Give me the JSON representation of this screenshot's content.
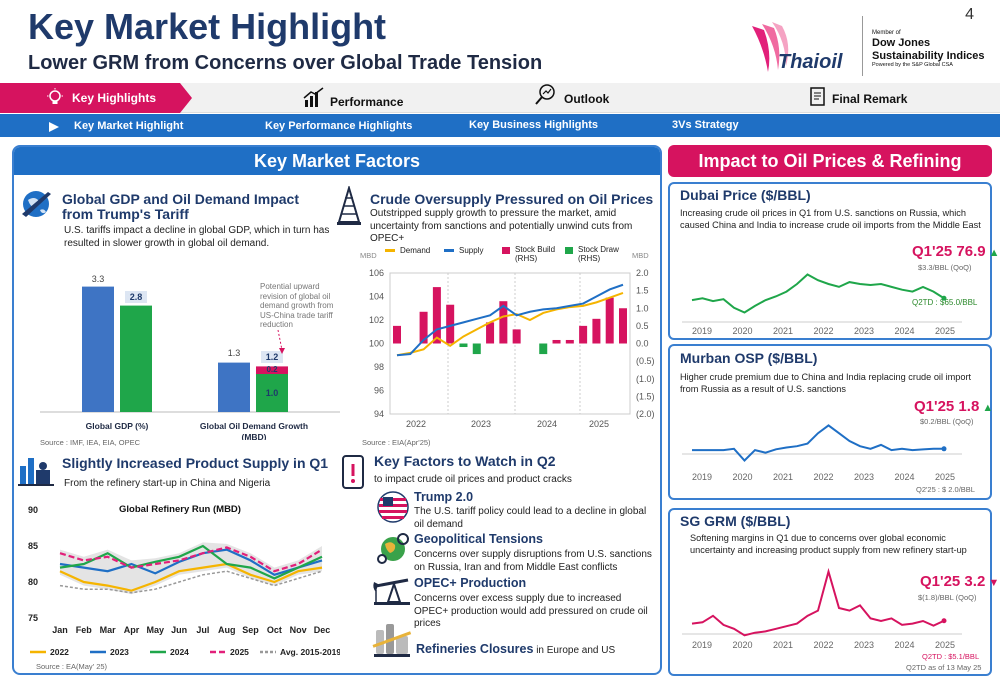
{
  "header": {
    "title": "Key Market Highlight",
    "subtitle": "Lower GRM from Concerns over Global Trade Tension",
    "page_number": "4",
    "brand": "Thaioil",
    "dj_member": "Member of",
    "dj_name1": "Dow Jones",
    "dj_name2": "Sustainability Indices",
    "dj_powered": "Powered by the S&P Global CSA"
  },
  "nav": {
    "tabs": [
      "Key Highlights",
      "Performance",
      "Outlook",
      "Final Remark"
    ],
    "subtabs": [
      "Key Market Highlight",
      "Key Performance Highlights",
      "Key Business Highlights",
      "3Vs Strategy"
    ]
  },
  "left_panel": {
    "header": "Key Market Factors",
    "gdp": {
      "title": "Global GDP and Oil Demand Impact from Trump's Tariff",
      "text": "U.S. tariffs impact a decline in global GDP, which in turn has resulted in slower growth in global oil demand.",
      "annotation": "Potential upward revision of global oil demand growth from US-China trade tariff reduction",
      "source": "Source : IMF, IEA, EIA, OPEC"
    },
    "oversupply": {
      "title": "Crude Oversupply Pressured on Oil Prices",
      "text": "Outstripped supply growth to pressure the market, amid uncertainty from sanctions and potentially unwind cuts from OPEC+",
      "source": "Source : EIA(Apr'25)"
    },
    "product": {
      "title": "Slightly Increased Product Supply in Q1",
      "text": "From the refinery start-up in China and Nigeria",
      "source": "Source : EA(May' 25)"
    },
    "watch": {
      "title": "Key Factors to Watch in Q2",
      "subtitle": "to impact crude oil prices and product cracks",
      "items": [
        {
          "title": "Trump 2.0",
          "text": "The U.S. tariff policy could lead to a decline in global oil demand"
        },
        {
          "title": "Geopolitical Tensions",
          "text": "Concerns over supply disruptions from U.S. sanctions on Russia, Iran and from Middle East conflicts"
        },
        {
          "title": "OPEC+ Production",
          "text": "Concerns over excess supply due to increased OPEC+ production would add pressured on crude oil prices"
        },
        {
          "title": "Refineries Closures",
          "text": " in Europe and US"
        }
      ]
    }
  },
  "right_panel": {
    "header": "Impact to Oil Prices & Refining Margin",
    "dubai": {
      "title": "Dubai Price ($/BBL)",
      "text": "Increasing crude oil prices in Q1 from U.S. sanctions on Russia, which caused China and India to increase crude oil imports from the Middle East",
      "price": "Q1'25 76.9",
      "change": "$3.3/BBL (QoQ)",
      "q2td": "Q2TD : $65.0/BBL",
      "years": [
        "2019",
        "2020",
        "2021",
        "2022",
        "2023",
        "2024",
        "2025"
      ]
    },
    "murban": {
      "title": "Murban OSP ($/BBL)",
      "text": "Higher crude premium due to China and India replacing crude oil import from Russia as a result of U.S. sanctions",
      "price": "Q1'25 1.8",
      "change": "$0.2/BBL (QoQ)",
      "q2td": "Q2'25 : $ 2.0/BBL",
      "years": [
        "2019",
        "2020",
        "2021",
        "2022",
        "2023",
        "2024",
        "2025"
      ]
    },
    "grm": {
      "title": "SG GRM ($/BBL)",
      "text": "Softening margins in Q1 due to concerns over global economic uncertainty and increasing product supply from new refinery start-up",
      "price": "Q1'25 3.2",
      "change": "$(1.8)/BBL (QoQ)",
      "q2td": "Q2TD : $5.1/BBL",
      "asof": "Q2TD as of 13 May 25",
      "years": [
        "2019",
        "2020",
        "2021",
        "2022",
        "2023",
        "2024",
        "2025"
      ]
    }
  },
  "colors": {
    "navy": "#1f3a6b",
    "blue": "#1f6fc5",
    "pink": "#d6135f",
    "green": "#1fa64a",
    "orange": "#f5b400"
  },
  "chart_data": [
    {
      "type": "bar",
      "categories": [
        "Global GDP (%)",
        "Global Oil Demand Growth (MBD)"
      ],
      "series": [
        {
          "values": [
            3.3,
            1.3
          ]
        },
        {
          "values": [
            2.8,
            1.0
          ]
        }
      ],
      "annotations": [
        "3.3",
        "2.8",
        "1.3",
        "1.2",
        "0.2",
        "1.0"
      ],
      "stacked_addition": 0.2
    },
    {
      "type": "line",
      "ylabel_left": "MBD",
      "ylabel_right": "MBD",
      "legend": [
        "Demand",
        "Supply",
        "Stock Build (RHS)",
        "Stock Draw (RHS)"
      ],
      "y_left_ticks": [
        "106",
        "104",
        "102",
        "100",
        "98",
        "96",
        "94"
      ],
      "y_right_ticks": [
        "2.0",
        "1.5",
        "1.0",
        "0.5",
        "0.0",
        "(0.5)",
        "(1.0)",
        "(1.5)",
        "(2.0)"
      ],
      "x_ticks": [
        "2022",
        "2023",
        "2024",
        "2025"
      ],
      "demand": [
        99.0,
        99.2,
        99.5,
        100.5,
        99.8,
        100.6,
        101.2,
        101.8,
        102.3,
        102.5,
        102.0,
        102.6,
        102.9,
        103.1,
        103.2,
        103.5,
        103.9,
        104.3
      ],
      "supply": [
        99.0,
        99.1,
        100.3,
        101.2,
        101.5,
        101.8,
        102.1,
        102.4,
        103.2,
        102.4,
        102.7,
        102.9,
        103.0,
        103.2,
        103.4,
        104.0,
        104.6,
        105.0
      ],
      "stock": [
        0.5,
        0,
        0.9,
        1.6,
        1.1,
        -0.1,
        -0.3,
        0.6,
        1.2,
        0.4,
        0,
        -0.3,
        0.1,
        0.1,
        0.5,
        0.7,
        1.3,
        1.0
      ]
    },
    {
      "type": "line",
      "title": "Global Refinery Run (MBD)",
      "x": [
        "Jan",
        "Feb",
        "Mar",
        "Apr",
        "May",
        "Jun",
        "Jul",
        "Aug",
        "Sep",
        "Oct",
        "Nov",
        "Dec"
      ],
      "y_ticks": [
        "90",
        "85",
        "80",
        "75"
      ],
      "series": [
        {
          "name": "2022",
          "values": [
            81.5,
            80.0,
            79.5,
            78.8,
            80.0,
            81.5,
            82.0,
            82.5,
            81.0,
            80.0,
            81.5,
            82.0
          ]
        },
        {
          "name": "2023",
          "values": [
            82.5,
            82.0,
            81.5,
            82.5,
            81.2,
            82.8,
            84.0,
            84.5,
            83.0,
            81.0,
            82.0,
            83.0
          ]
        },
        {
          "name": "2024",
          "values": [
            82.0,
            82.5,
            84.0,
            82.0,
            82.8,
            83.5,
            85.0,
            82.5,
            82.0,
            80.5,
            82.0,
            83.5
          ]
        },
        {
          "name": "2025",
          "values": [
            84.0,
            83.0,
            83.5,
            82.0,
            82.5,
            83.0,
            84.0,
            84.8,
            83.5,
            81.5,
            82.5,
            84.5
          ]
        },
        {
          "name": "Avg. 2015-2019",
          "values": [
            79.5,
            79.0,
            79.0,
            78.5,
            79.0,
            80.0,
            81.0,
            81.5,
            80.5,
            79.5,
            80.5,
            81.5
          ]
        }
      ]
    }
  ]
}
